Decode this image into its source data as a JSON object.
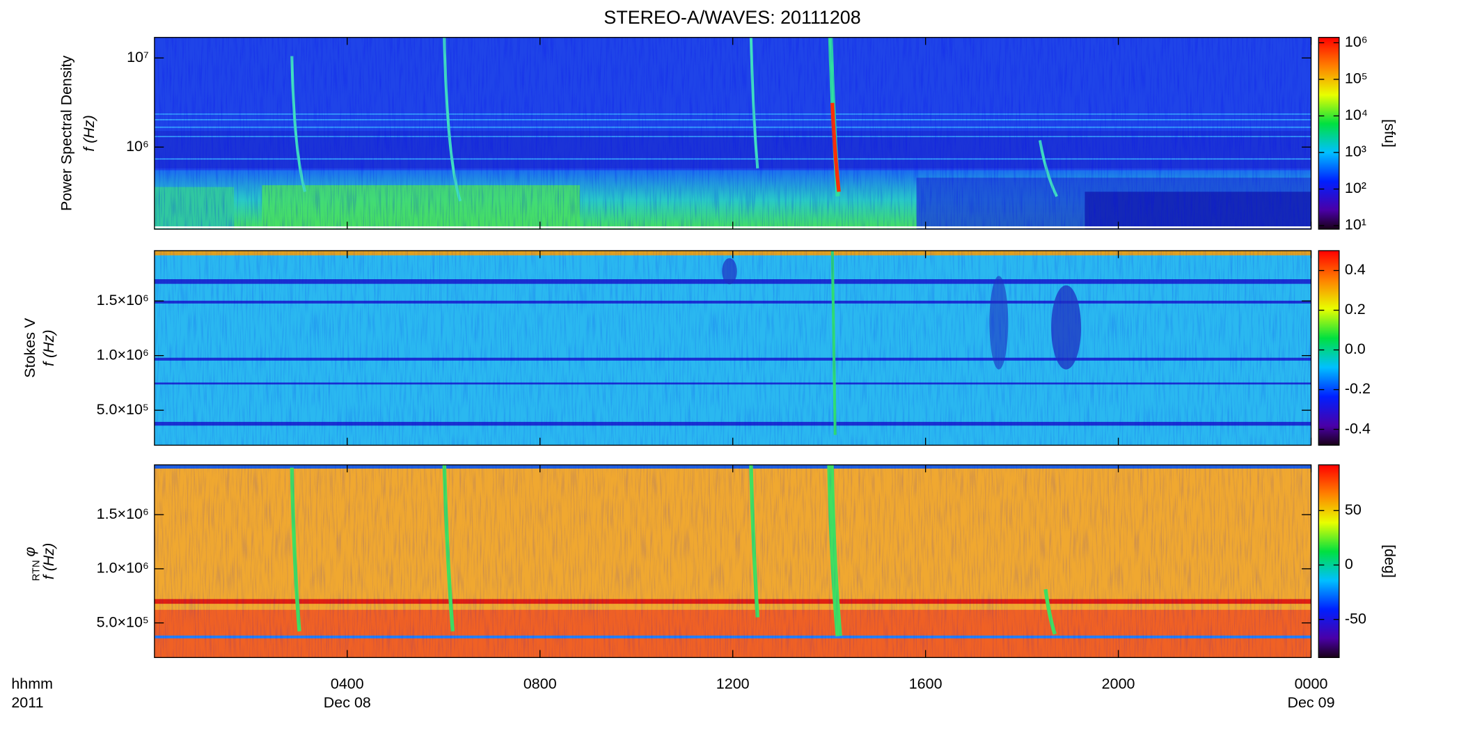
{
  "chart_data": {
    "type": "heatmap",
    "title": "STEREO-A/WAVES: 20111208",
    "xlabel": "hhmm",
    "xlabel_year": "2011",
    "xlim": [
      0,
      24
    ],
    "xticks": [
      {
        "value": 4,
        "label": "0400"
      },
      {
        "value": 8,
        "label": "0800"
      },
      {
        "value": 12,
        "label": "1200"
      },
      {
        "value": 16,
        "label": "1600"
      },
      {
        "value": 20,
        "label": "2000"
      },
      {
        "value": 24,
        "label": "0000"
      }
    ],
    "date_labels": [
      {
        "value": 4,
        "label": "Dec 08"
      },
      {
        "value": 24,
        "label": "Dec 09"
      }
    ],
    "panels": [
      {
        "ylabel": "Power Spectral Density",
        "ylabel_unit": "f (Hz)",
        "yscale": "log",
        "ylim": [
          120000,
          17000000
        ],
        "yticks": [
          {
            "value": 1000000,
            "label": "10⁶"
          },
          {
            "value": 10000000,
            "label": "10⁷"
          }
        ],
        "colorbar": {
          "label": "[sfu]",
          "scale": "log",
          "clim": [
            8,
            1400000
          ],
          "ticks": [
            {
              "value": 10,
              "label": "10¹"
            },
            {
              "value": 100,
              "label": "10²"
            },
            {
              "value": 1000,
              "label": "10³"
            },
            {
              "value": 10000,
              "label": "10⁴"
            },
            {
              "value": 100000,
              "label": "10⁵"
            },
            {
              "value": 1000000,
              "label": "10⁶"
            }
          ]
        }
      },
      {
        "ylabel": "Stokes V",
        "ylabel_unit": "f (Hz)",
        "yscale": "linear",
        "ylim": [
          180000,
          1960000
        ],
        "yticks": [
          {
            "value": 500000,
            "label": "5.0×10⁵"
          },
          {
            "value": 1000000,
            "label": "1.0×10⁶"
          },
          {
            "value": 1500000,
            "label": "1.5×10⁶"
          }
        ],
        "colorbar": {
          "scale": "linear",
          "clim": [
            -0.48,
            0.5
          ],
          "ticks": [
            -0.4,
            -0.2,
            {
              "value": 0,
              "label": "0.0"
            },
            0.2,
            0.4
          ]
        }
      },
      {
        "ylabel": "φ",
        "ylabel_sub": "RTN",
        "ylabel_unit": "f (Hz)",
        "yscale": "linear",
        "ylim": [
          180000,
          1960000
        ],
        "yticks": [
          {
            "value": 500000,
            "label": "5.0×10⁵"
          },
          {
            "value": 1000000,
            "label": "1.0×10⁶"
          },
          {
            "value": 1500000,
            "label": "1.5×10⁶"
          }
        ],
        "colorbar": {
          "label": "[deg]",
          "scale": "linear",
          "clim": [
            -85,
            92
          ],
          "ticks": [
            -50,
            0,
            50
          ]
        }
      }
    ]
  }
}
